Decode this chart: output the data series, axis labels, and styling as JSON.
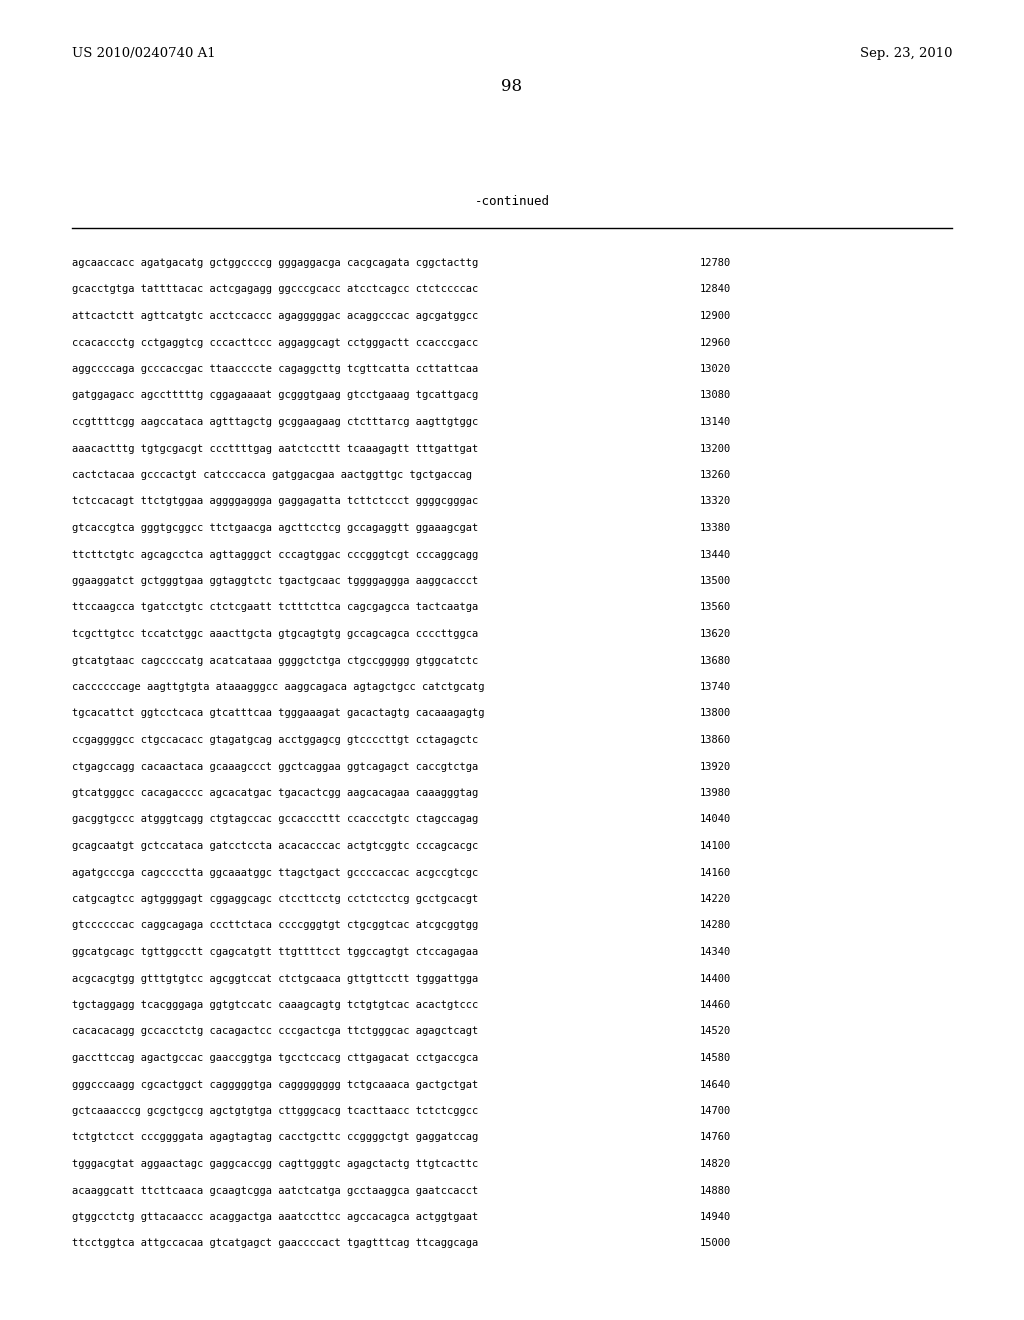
{
  "header_left": "US 2010/0240740 A1",
  "header_right": "Sep. 23, 2010",
  "page_number": "98",
  "continued_label": "-continued",
  "background_color": "#ffffff",
  "text_color": "#000000",
  "font_size_header": 9.5,
  "font_size_page": 12,
  "font_size_continued": 9,
  "font_size_sequence": 7.5,
  "sequence_lines": [
    [
      "agcaaccacc agatgacatg gctggccccg gggaggacga cacgcagata cggctacttg",
      "12780"
    ],
    [
      "gcacctgtga tattttacac actcgagagg ggcccgcacc atcctcagcc ctctccccac",
      "12840"
    ],
    [
      "attcactctt agttcatgtc acctccaccc agagggggac acaggcccac agcgatggcc",
      "12900"
    ],
    [
      "ccacaccctg cctgaggtcg cccacttccc aggaggcagt cctgggactt ccacccgacc",
      "12960"
    ],
    [
      "aggccccaga gcccaccgac ttaaccccte cagaggcttg tcgttcatta ccttattcaa",
      "13020"
    ],
    [
      "gatggagacc agcctttttg cggagaaaat gcgggtgaag gtcctgaaag tgcattgacg",
      "13080"
    ],
    [
      "ccgttttcgg aagccataca agtttagctg gcggaagaag ctctttатcg aagttgtggc",
      "13140"
    ],
    [
      "aaacactttg tgtgcgacgt cccttttgag aatctccttt tcaaagagtt tttgattgat",
      "13200"
    ],
    [
      "cactctacaa gcccactgt catcccacca gatggacgaa aactggttgc tgctgaccag",
      "13260"
    ],
    [
      "tctccacagt ttctgtggaa aggggaggga gaggagatta tcttctccct ggggcgggac",
      "13320"
    ],
    [
      "gtcaccgtca gggtgcggcc ttctgaacga agcttcctcg gccagaggtt ggaaagcgat",
      "13380"
    ],
    [
      "ttcttctgtc agcagcctca agttagggct cccagtggac cccgggtcgt cccaggcagg",
      "13440"
    ],
    [
      "ggaaggatct gctgggtgaa ggtaggtctc tgactgcaac tggggaggga aaggcaccct",
      "13500"
    ],
    [
      "ttccaagcca tgatcctgtc ctctcgaatt tctttcttca cagcgagcca tactcaatga",
      "13560"
    ],
    [
      "tcgcttgtcc tccatctggc aaacttgcta gtgcagtgtg gccagcagca ccccttggca",
      "13620"
    ],
    [
      "gtcatgtaac cagccccatg acatcataaa ggggctctga ctgccggggg gtggcatctc",
      "13680"
    ],
    [
      "caccccccage aagttgtgta ataaagggcc aaggcagaca agtagctgcc catctgcatg",
      "13740"
    ],
    [
      "tgcacattct ggtcctcaca gtcatttcaa tgggaaagat gacactagtg cacaaagagtg",
      "13800"
    ],
    [
      "ccgaggggcc ctgccacacc gtagatgcag acctggagcg gtccccttgt cctagagctc",
      "13860"
    ],
    [
      "ctgagccagg cacaactaca gcaaagccct ggctcaggaa ggtcagagct caccgtctga",
      "13920"
    ],
    [
      "gtcatgggcc cacagacccc agcacatgac tgacactcgg aagcacagaa caaagggtag",
      "13980"
    ],
    [
      "gacggtgccc atgggtcagg ctgtagccac gccacccttt ccaccctgtc ctagccagag",
      "14040"
    ],
    [
      "gcagcaatgt gctccataca gatcctccta acacacccac actgtcggtc cccagcacgc",
      "14100"
    ],
    [
      "agatgcccga cagcccctta ggcaaatggc ttagctgact gccccaccac acgccgtcgc",
      "14160"
    ],
    [
      "catgcagtcc agtggggagt cggaggcagc ctccttcctg cctctcctcg gcctgcacgt",
      "14220"
    ],
    [
      "gtccccccac caggcagaga cccttctaca ccccgggtgt ctgcggtcac atcgcggtgg",
      "14280"
    ],
    [
      "ggcatgcagc tgttggcctt cgagcatgtt ttgttttcct tggccagtgt ctccagagaa",
      "14340"
    ],
    [
      "acgcacgtgg gtttgtgtcc agcggtccat ctctgcaaca gttgttcctt tgggattgga",
      "14400"
    ],
    [
      "tgctaggagg tcacgggaga ggtgtccatc caaagcagtg tctgtgtcac acactgtccc",
      "14460"
    ],
    [
      "cacacacagg gccacctctg cacagactcc cccgactcga ttctgggcac agagctcagt",
      "14520"
    ],
    [
      "gaccttccag agactgccac gaaccggtga tgcctccacg cttgagacat cctgaccgca",
      "14580"
    ],
    [
      "gggcccaagg cgcactggct cagggggtga cagggggggg tctgcaaaca gactgctgat",
      "14640"
    ],
    [
      "gctcaaacccg gcgctgccg agctgtgtga cttgggcacg tcacttaacc tctctcggcc",
      "14700"
    ],
    [
      "tctgtctcct cccggggata agagtagtag cacctgcttc ccggggctgt gaggatccag",
      "14760"
    ],
    [
      "tgggacgtat aggaactagc gaggcaccgg cagttgggtc agagctactg ttgtcacttc",
      "14820"
    ],
    [
      "acaaggcatt ttcttcaaca gcaagtcgga aatctcatga gcctaaggca gaatccacct",
      "14880"
    ],
    [
      "gtggcctctg gttacaaccc acaggactga aaatccttcc agccacagca actggtgaat",
      "14940"
    ],
    [
      "ttcctggtca attgccacaa gtcatgagct gaaccccact tgagtttcag ttcaggcaga",
      "15000"
    ]
  ]
}
